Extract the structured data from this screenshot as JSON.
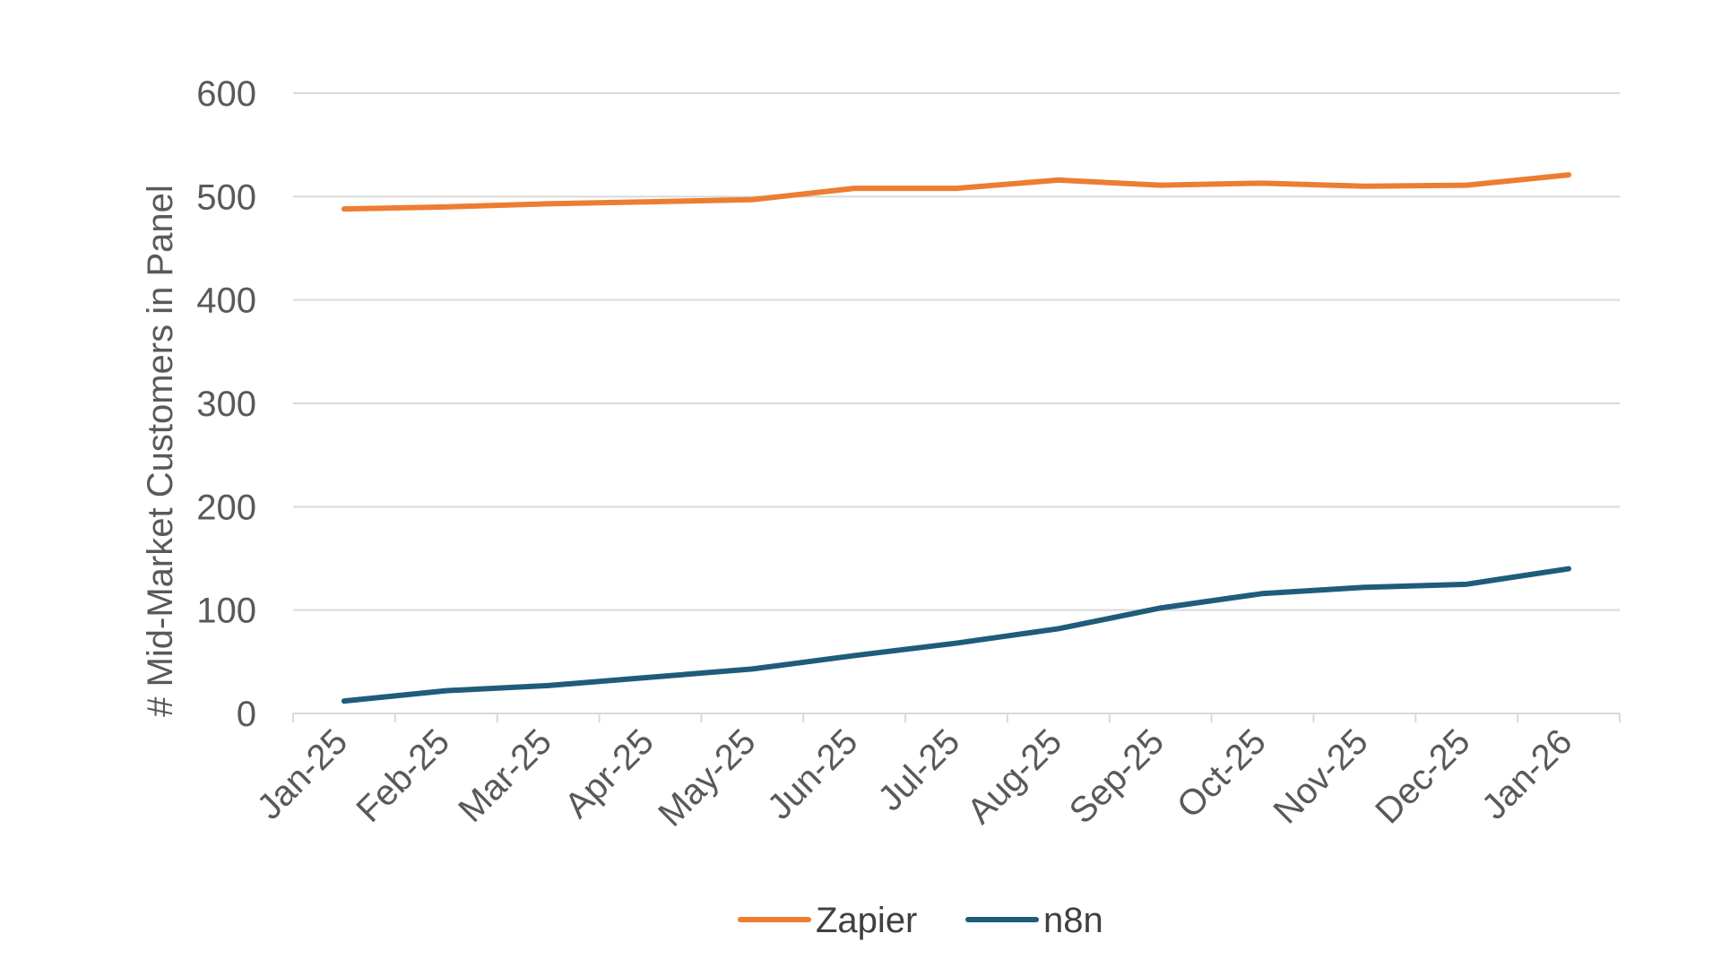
{
  "chart_data": {
    "type": "line",
    "title": "",
    "xlabel": "",
    "ylabel": "# Mid-Market Customers in Panel",
    "ylim": [
      0,
      600
    ],
    "yticks": [
      0,
      100,
      200,
      300,
      400,
      500,
      600
    ],
    "grid": "horizontal",
    "legend_position": "bottom",
    "categories": [
      "Jan-25",
      "Feb-25",
      "Mar-25",
      "Apr-25",
      "May-25",
      "Jun-25",
      "Jul-25",
      "Aug-25",
      "Sep-25",
      "Oct-25",
      "Nov-25",
      "Dec-25",
      "Jan-26"
    ],
    "series": [
      {
        "name": "Zapier",
        "color": "#ED7D31",
        "values": [
          488,
          490,
          493,
          495,
          497,
          508,
          508,
          516,
          511,
          513,
          510,
          511,
          521
        ]
      },
      {
        "name": "n8n",
        "color": "#1F5C7A",
        "values": [
          12,
          22,
          27,
          35,
          43,
          56,
          68,
          82,
          102,
          116,
          122,
          125,
          140
        ]
      }
    ]
  }
}
